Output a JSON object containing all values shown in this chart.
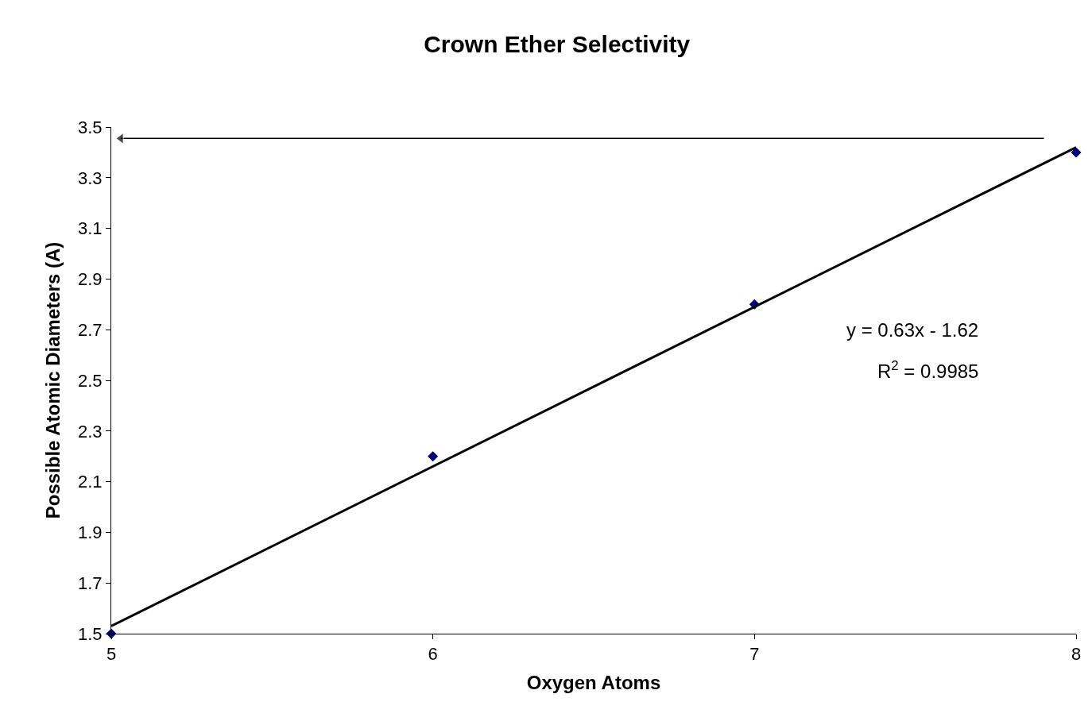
{
  "chart_data": {
    "type": "scatter",
    "title": "Crown Ether Selectivity",
    "xlabel": "Oxygen Atoms",
    "ylabel": "Possible Atomic Diameters (A)",
    "x": [
      5,
      6,
      7,
      8
    ],
    "series": [
      {
        "color": "#000080",
        "marker": "diamond",
        "values": [
          1.5,
          2.2,
          2.8,
          3.4
        ]
      },
      {
        "type": "line",
        "color": "#000000",
        "marker": "none",
        "line_style": "solid",
        "x": [
          5,
          8
        ],
        "values": [
          1.53,
          3.42
        ]
      },
      {
        "type": "line",
        "color": "#000000",
        "marker": "triangle",
        "line_style": "solid",
        "x": [
          7.9,
          5.03
        ],
        "values": [
          3.455,
          3.455
        ]
      }
    ],
    "xlim": [
      5,
      8
    ],
    "xticks": [
      5,
      6,
      7,
      8
    ],
    "ylim": [
      1.5,
      3.5
    ],
    "yticks": [
      1.5,
      1.7,
      1.9,
      2.1,
      2.3,
      2.5,
      2.7,
      2.9,
      3.1,
      3.3,
      3.5
    ],
    "annotations": [
      "y = 0.63x - 1.62",
      "R$^{2}$ = 0.9985"
    ],
    "legend": false
  }
}
